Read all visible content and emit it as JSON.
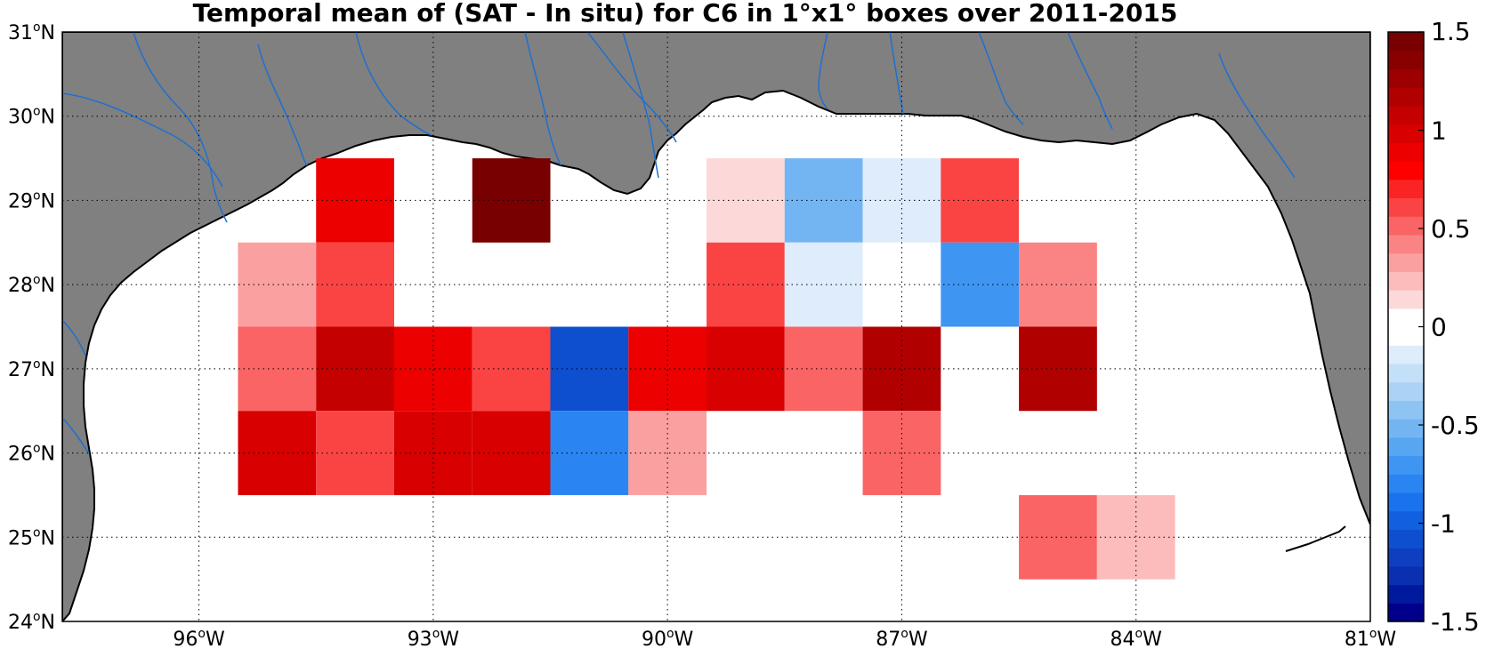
{
  "title": "Temporal mean of (SAT - In situ) for C6 in 1°x1° boxes over 2011-2015",
  "map": {
    "lon_range": [
      -97.75,
      -81.0
    ],
    "lat_range": [
      24.0,
      31.0
    ],
    "land_color": "#808080",
    "river_color": "#1f6fd1",
    "grid_style": "dotted"
  },
  "axes": {
    "lon_ticks": [
      {
        "value": -96,
        "text": "96",
        "hemi": "W"
      },
      {
        "value": -93,
        "text": "93",
        "hemi": "W"
      },
      {
        "value": -90,
        "text": "90",
        "hemi": "W"
      },
      {
        "value": -87,
        "text": "87",
        "hemi": "W"
      },
      {
        "value": -84,
        "text": "84",
        "hemi": "W"
      },
      {
        "value": -81,
        "text": "81",
        "hemi": "W"
      }
    ],
    "lat_ticks": [
      {
        "value": 24,
        "text": "24",
        "hemi": "N"
      },
      {
        "value": 25,
        "text": "25",
        "hemi": "N"
      },
      {
        "value": 26,
        "text": "26",
        "hemi": "N"
      },
      {
        "value": 27,
        "text": "27",
        "hemi": "N"
      },
      {
        "value": 28,
        "text": "28",
        "hemi": "N"
      },
      {
        "value": 29,
        "text": "29",
        "hemi": "N"
      },
      {
        "value": 30,
        "text": "30",
        "hemi": "N"
      },
      {
        "value": 31,
        "text": "31",
        "hemi": "N"
      }
    ]
  },
  "colorbar": {
    "min": -1.5,
    "max": 1.5,
    "tick_labels": [
      "1.5",
      "1",
      "0.5",
      "0",
      "-0.5",
      "-1",
      "-1.5"
    ],
    "tick_values": [
      1.5,
      1,
      0.5,
      0,
      -0.5,
      -1,
      -1.5
    ],
    "colors_low_to_high": [
      "#00008b",
      "#001a9e",
      "#0a2fb0",
      "#0d3fc0",
      "#0e4fd0",
      "#1060e0",
      "#1a72ec",
      "#2a85f2",
      "#3f95f2",
      "#58a5f2",
      "#73b5f2",
      "#8ec4f4",
      "#aad3f6",
      "#c4e0f8",
      "#deecfb",
      "#ffffff",
      "#ffffff",
      "#fdd8d8",
      "#fcbcbc",
      "#fba0a0",
      "#fa8484",
      "#fa6464",
      "#fa4444",
      "#fa2424",
      "#ff0000",
      "#ec0000",
      "#d80000",
      "#c40000",
      "#b00000",
      "#9c0000",
      "#880000",
      "#780000"
    ]
  },
  "chart_data": {
    "type": "heatmap",
    "title": "Temporal mean of (SAT - In situ) for C6 in 1°x1° boxes over 2011-2015",
    "cell_size_deg": 1,
    "cells": [
      {
        "lon": -94,
        "lat": 29,
        "value": 0.85
      },
      {
        "lon": -92,
        "lat": 29,
        "value": 1.5
      },
      {
        "lon": -89,
        "lat": 29,
        "value": 0.12
      },
      {
        "lon": -88,
        "lat": 29,
        "value": -0.5
      },
      {
        "lon": -87,
        "lat": 29,
        "value": -0.1
      },
      {
        "lon": -86,
        "lat": 29,
        "value": 0.6
      },
      {
        "lon": -95,
        "lat": 28,
        "value": 0.35
      },
      {
        "lon": -94,
        "lat": 28,
        "value": 0.65
      },
      {
        "lon": -89,
        "lat": 28,
        "value": 0.6
      },
      {
        "lon": -88,
        "lat": 28,
        "value": -0.12
      },
      {
        "lon": -86,
        "lat": 28,
        "value": -0.7
      },
      {
        "lon": -85,
        "lat": 28,
        "value": 0.4
      },
      {
        "lon": -95,
        "lat": 27,
        "value": 0.55
      },
      {
        "lon": -94,
        "lat": 27,
        "value": 1.1
      },
      {
        "lon": -93,
        "lat": 27,
        "value": 0.85
      },
      {
        "lon": -92,
        "lat": 27,
        "value": 0.65
      },
      {
        "lon": -91,
        "lat": 27,
        "value": -1.1
      },
      {
        "lon": -90,
        "lat": 27,
        "value": 0.85
      },
      {
        "lon": -89,
        "lat": 27,
        "value": 0.95
      },
      {
        "lon": -88,
        "lat": 27,
        "value": 0.55
      },
      {
        "lon": -87,
        "lat": 27,
        "value": 1.2
      },
      {
        "lon": -85,
        "lat": 27,
        "value": 1.2
      },
      {
        "lon": -95,
        "lat": 26,
        "value": 0.95
      },
      {
        "lon": -94,
        "lat": 26,
        "value": 0.65
      },
      {
        "lon": -93,
        "lat": 26,
        "value": 0.95
      },
      {
        "lon": -92,
        "lat": 26,
        "value": 0.95
      },
      {
        "lon": -91,
        "lat": 26,
        "value": -0.8
      },
      {
        "lon": -90,
        "lat": 26,
        "value": 0.35
      },
      {
        "lon": -87,
        "lat": 26,
        "value": 0.55
      },
      {
        "lon": -85,
        "lat": 25,
        "value": 0.55
      },
      {
        "lon": -84,
        "lat": 25,
        "value": 0.25
      }
    ],
    "colorbar_range": [
      -1.5,
      1.5
    ]
  }
}
